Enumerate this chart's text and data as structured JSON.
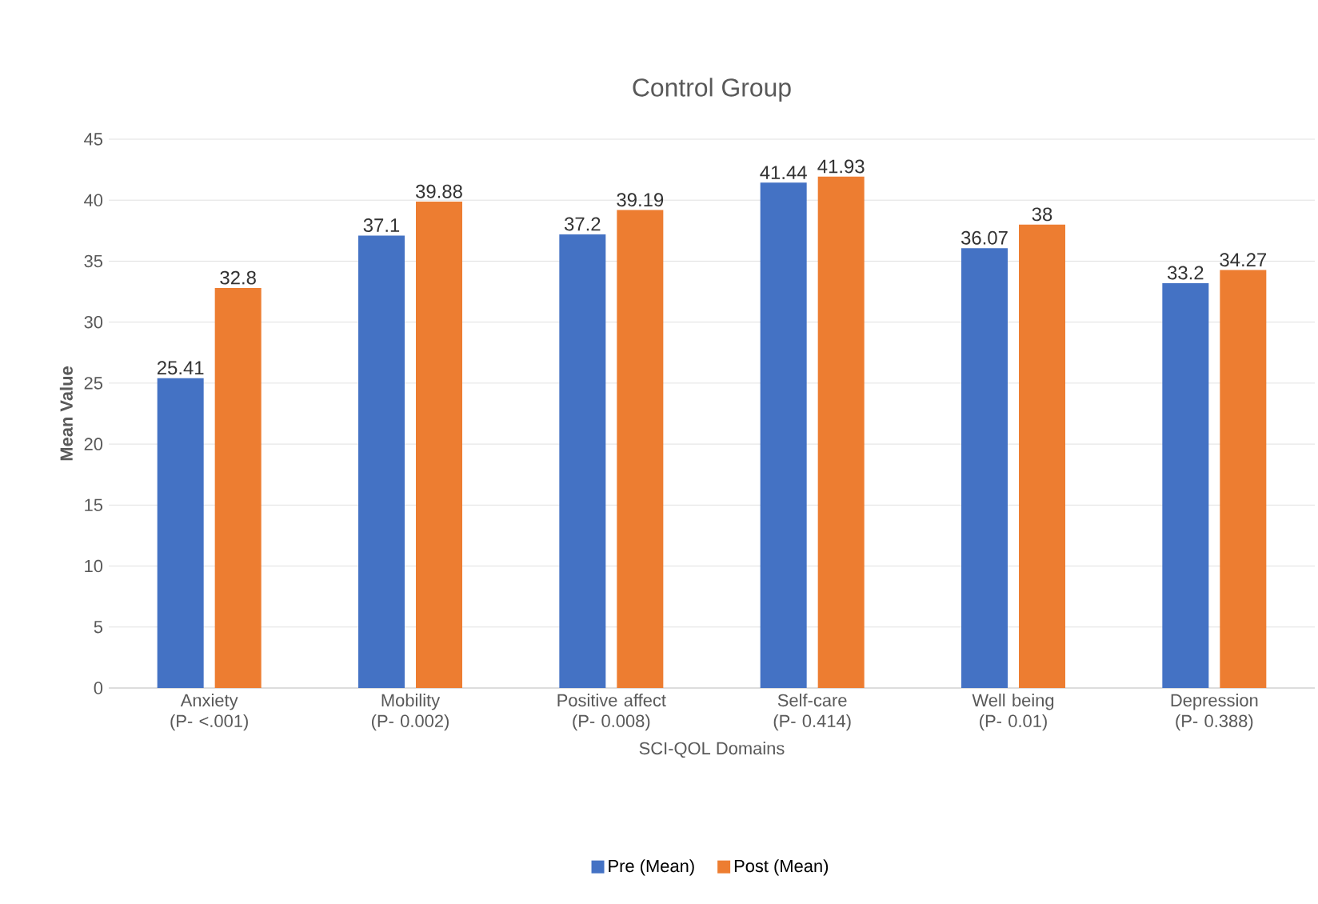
{
  "chart_data": {
    "type": "bar",
    "title": "Control Group",
    "xlabel": "SCI-QOL Domains",
    "ylabel": "Mean Value",
    "categories": [
      "Anxiety (P- <.001)",
      "Mobility (P- 0.002)",
      "Positive affect (P- 0.008)",
      "Self-care (P- 0.414)",
      "Well being (P- 0.01)",
      "Depression (P- 0.388)"
    ],
    "series": [
      {
        "name": "Pre (Mean)",
        "color": "#4472c4",
        "values": [
          25.41,
          37.1,
          37.2,
          41.44,
          36.07,
          33.2
        ]
      },
      {
        "name": "Post (Mean)",
        "color": "#ed7d31",
        "values": [
          32.8,
          39.88,
          39.19,
          41.93,
          38,
          34.27
        ]
      }
    ],
    "ylim": [
      0,
      45
    ],
    "yticks": [
      0,
      5,
      10,
      15,
      20,
      25,
      30,
      35,
      40,
      45
    ],
    "grid": "y",
    "legend": "bottom",
    "data_labels": true
  }
}
